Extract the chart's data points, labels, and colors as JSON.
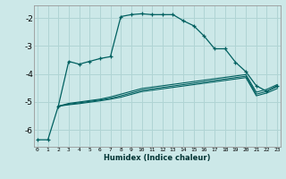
{
  "xlabel": "Humidex (Indice chaleur)",
  "ylim": [
    -6.6,
    -1.55
  ],
  "yticks": [
    -6,
    -5,
    -4,
    -3,
    -2
  ],
  "xlim": [
    -0.3,
    23.3
  ],
  "background_color": "#cce8e8",
  "grid_color": "#b0d4d4",
  "line_color": "#006060",
  "curve1_x": [
    0,
    1,
    2,
    3,
    4,
    5,
    6,
    7,
    8,
    9,
    10,
    11,
    12,
    13,
    14,
    15,
    16,
    17,
    18,
    19,
    20,
    21,
    22,
    23
  ],
  "curve1_y": [
    -6.35,
    -6.35,
    -5.15,
    -3.55,
    -3.65,
    -3.55,
    -3.45,
    -3.38,
    -1.95,
    -1.88,
    -1.85,
    -1.88,
    -1.88,
    -1.88,
    -2.1,
    -2.28,
    -2.65,
    -3.1,
    -3.1,
    -3.58,
    -3.92,
    -4.42,
    -4.62,
    -4.42
  ],
  "line2_x": [
    2,
    3,
    4,
    5,
    6,
    7,
    8,
    9,
    10,
    11,
    12,
    13,
    14,
    15,
    16,
    17,
    18,
    19,
    20,
    21,
    22,
    23
  ],
  "line2_y": [
    -5.15,
    -5.05,
    -5.0,
    -4.95,
    -4.9,
    -4.82,
    -4.72,
    -4.62,
    -4.52,
    -4.47,
    -4.42,
    -4.37,
    -4.32,
    -4.27,
    -4.22,
    -4.17,
    -4.12,
    -4.07,
    -4.02,
    -4.65,
    -4.55,
    -4.38
  ],
  "line3_x": [
    2,
    3,
    4,
    5,
    6,
    7,
    8,
    9,
    10,
    11,
    12,
    13,
    14,
    15,
    16,
    17,
    18,
    19,
    20,
    21,
    22,
    23
  ],
  "line3_y": [
    -5.15,
    -5.08,
    -5.03,
    -4.98,
    -4.93,
    -4.87,
    -4.78,
    -4.68,
    -4.58,
    -4.53,
    -4.48,
    -4.43,
    -4.38,
    -4.33,
    -4.28,
    -4.23,
    -4.18,
    -4.13,
    -4.08,
    -4.72,
    -4.62,
    -4.45
  ],
  "line4_x": [
    2,
    3,
    4,
    5,
    6,
    7,
    8,
    9,
    10,
    11,
    12,
    13,
    14,
    15,
    16,
    17,
    18,
    19,
    20,
    21,
    22,
    23
  ],
  "line4_y": [
    -5.15,
    -5.1,
    -5.06,
    -5.01,
    -4.96,
    -4.9,
    -4.83,
    -4.73,
    -4.63,
    -4.58,
    -4.53,
    -4.48,
    -4.43,
    -4.38,
    -4.33,
    -4.28,
    -4.23,
    -4.18,
    -4.13,
    -4.78,
    -4.68,
    -4.52
  ],
  "x_ticks": [
    0,
    1,
    2,
    3,
    4,
    5,
    6,
    7,
    8,
    9,
    10,
    11,
    12,
    13,
    14,
    15,
    16,
    17,
    18,
    19,
    20,
    21,
    22,
    23
  ],
  "x_tick_labels": [
    "0",
    "1",
    "2",
    "3",
    "4",
    "5",
    "6",
    "7",
    "8",
    "9",
    "10",
    "11",
    "12",
    "13",
    "14",
    "15",
    "16",
    "17",
    "18",
    "19",
    "20",
    "21",
    "22",
    "23"
  ]
}
